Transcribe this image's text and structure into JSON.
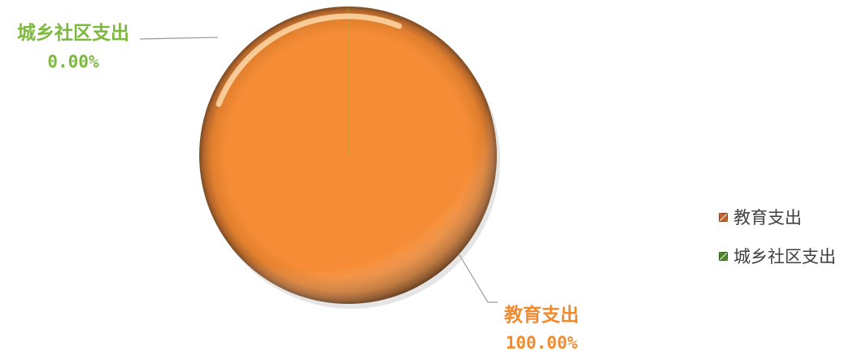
{
  "chart_data": {
    "type": "pie",
    "categories": [
      "教育支出",
      "城乡社区支出"
    ],
    "values": [
      100.0,
      0.0
    ],
    "value_labels": [
      "100.00%",
      "0.00%"
    ],
    "colors": [
      "#F58B32",
      "#7DBA3C"
    ],
    "label_colors": [
      "#F28A2E",
      "#7DB83F"
    ],
    "legend": {
      "position": "right",
      "items": [
        {
          "label": "教育支出",
          "color": "#C0622A"
        },
        {
          "label": "城乡社区支出",
          "color": "#4E8A2A"
        }
      ]
    },
    "title": ""
  }
}
